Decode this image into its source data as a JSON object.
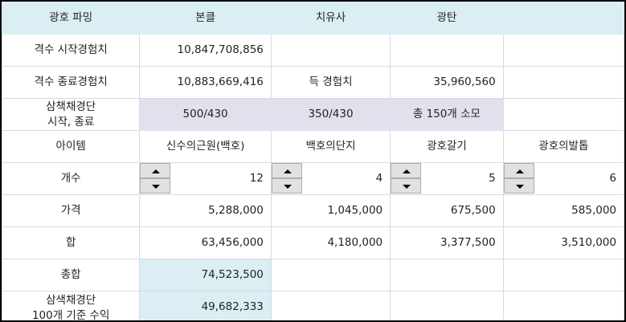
{
  "header": [
    "광호 파밍",
    "본클",
    "치유사",
    "광탄",
    ""
  ],
  "rows": {
    "start_exp": {
      "label": "격수 시작경험치",
      "value": "10,847,708,856"
    },
    "end_exp": {
      "label": "격수 종료경험치",
      "value": "10,883,669,416",
      "gain_label": "득 경험치",
      "gain_value": "35,960,560"
    },
    "scroll": {
      "label_line1": "삼책채경단",
      "label_line2": "시작, 종료",
      "v1": "500/430",
      "v2": "350/430",
      "v3": "총 150개 소모"
    },
    "items": {
      "label": "아이템",
      "names": [
        "신수의근원(백호)",
        "백호의단지",
        "광호갈기",
        "광호의발톱"
      ]
    },
    "count": {
      "label": "개수",
      "values": [
        "12",
        "4",
        "5",
        "6"
      ]
    },
    "price": {
      "label": "가격",
      "values": [
        "5,288,000",
        "1,045,000",
        "675,500",
        "585,000"
      ]
    },
    "sum": {
      "label": "합",
      "values": [
        "63,456,000",
        "4,180,000",
        "3,377,500",
        "3,510,000"
      ]
    },
    "total": {
      "label": "총합",
      "value": "74,523,500"
    },
    "per100": {
      "label_line1": "삼색채경단",
      "label_line2": "100개 기준 수익",
      "value": "49,682,333"
    }
  }
}
